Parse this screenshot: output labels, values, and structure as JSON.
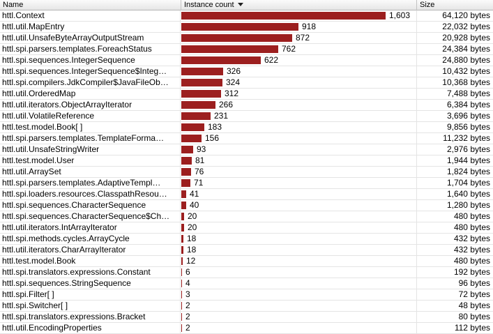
{
  "header": {
    "name": "Name",
    "count": "Instance count",
    "size": "Size"
  },
  "accent": "#9c1f1f",
  "max_count": 1603,
  "rows": [
    {
      "name": "httl.Context",
      "count": "1,603",
      "size": "64,120 bytes"
    },
    {
      "name": "httl.util.MapEntry",
      "count": "918",
      "size": "22,032 bytes"
    },
    {
      "name": "httl.util.UnsafeByteArrayOutputStream",
      "count": "872",
      "size": "20,928 bytes"
    },
    {
      "name": "httl.spi.parsers.templates.ForeachStatus",
      "count": "762",
      "size": "24,384 bytes"
    },
    {
      "name": "httl.spi.sequences.IntegerSequence",
      "count": "622",
      "size": "24,880 bytes"
    },
    {
      "name": "httl.spi.sequences.IntegerSequence$Integ…",
      "count": "326",
      "size": "10,432 bytes"
    },
    {
      "name": "httl.spi.compilers.JdkCompiler$JavaFileOb…",
      "count": "324",
      "size": "10,368 bytes"
    },
    {
      "name": "httl.util.OrderedMap",
      "count": "312",
      "size": "7,488 bytes"
    },
    {
      "name": "httl.util.iterators.ObjectArrayIterator",
      "count": "266",
      "size": "6,384 bytes"
    },
    {
      "name": "httl.util.VolatileReference",
      "count": "231",
      "size": "3,696 bytes"
    },
    {
      "name": "httl.test.model.Book[ ]",
      "count": "183",
      "size": "9,856 bytes"
    },
    {
      "name": "httl.spi.parsers.templates.TemplateForma…",
      "count": "156",
      "size": "11,232 bytes"
    },
    {
      "name": "httl.util.UnsafeStringWriter",
      "count": "93",
      "size": "2,976 bytes"
    },
    {
      "name": "httl.test.model.User",
      "count": "81",
      "size": "1,944 bytes"
    },
    {
      "name": "httl.util.ArraySet",
      "count": "76",
      "size": "1,824 bytes"
    },
    {
      "name": "httl.spi.parsers.templates.AdaptiveTempl…",
      "count": "71",
      "size": "1,704 bytes"
    },
    {
      "name": "httl.spi.loaders.resources.ClasspathResou…",
      "count": "41",
      "size": "1,640 bytes"
    },
    {
      "name": "httl.spi.sequences.CharacterSequence",
      "count": "40",
      "size": "1,280 bytes"
    },
    {
      "name": "httl.spi.sequences.CharacterSequence$Ch…",
      "count": "20",
      "size": "480 bytes"
    },
    {
      "name": "httl.util.iterators.IntArrayIterator",
      "count": "20",
      "size": "480 bytes"
    },
    {
      "name": "httl.spi.methods.cycles.ArrayCycle",
      "count": "18",
      "size": "432 bytes"
    },
    {
      "name": "httl.util.iterators.CharArrayIterator",
      "count": "18",
      "size": "432 bytes"
    },
    {
      "name": "httl.test.model.Book",
      "count": "12",
      "size": "480 bytes"
    },
    {
      "name": "httl.spi.translators.expressions.Constant",
      "count": "6",
      "size": "192 bytes"
    },
    {
      "name": "httl.spi.sequences.StringSequence",
      "count": "4",
      "size": "96 bytes"
    },
    {
      "name": "httl.spi.Filter[ ]",
      "count": "3",
      "size": "72 bytes"
    },
    {
      "name": "httl.spi.Switcher[ ]",
      "count": "2",
      "size": "48 bytes"
    },
    {
      "name": "httl.spi.translators.expressions.Bracket",
      "count": "2",
      "size": "80 bytes"
    },
    {
      "name": "httl.util.EncodingProperties",
      "count": "2",
      "size": "112 bytes"
    }
  ]
}
